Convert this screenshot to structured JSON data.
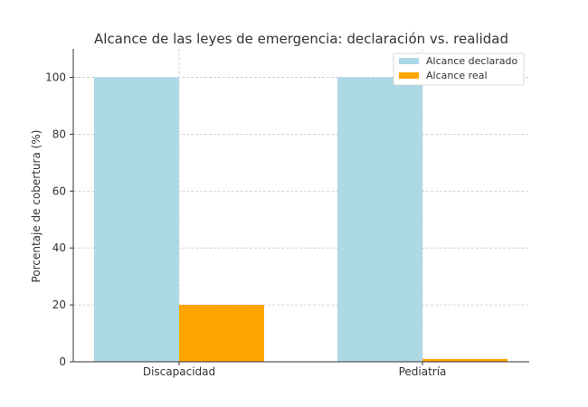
{
  "chart_data": {
    "type": "bar",
    "title": "Alcance de las leyes de emergencia: declaración vs. realidad",
    "xlabel": "",
    "ylabel": "Porcentaje de cobertura (%)",
    "categories": [
      "Discapacidad",
      "Pediatría"
    ],
    "series": [
      {
        "name": "Alcance declarado",
        "values": [
          100,
          100
        ],
        "color": "#add8e6"
      },
      {
        "name": "Alcance real",
        "values": [
          20,
          1
        ],
        "color": "#ffa500"
      }
    ],
    "ylim": [
      0,
      110
    ],
    "yticks": [
      0,
      20,
      40,
      60,
      80,
      100
    ],
    "grid": true,
    "legend_position": "top-right"
  }
}
